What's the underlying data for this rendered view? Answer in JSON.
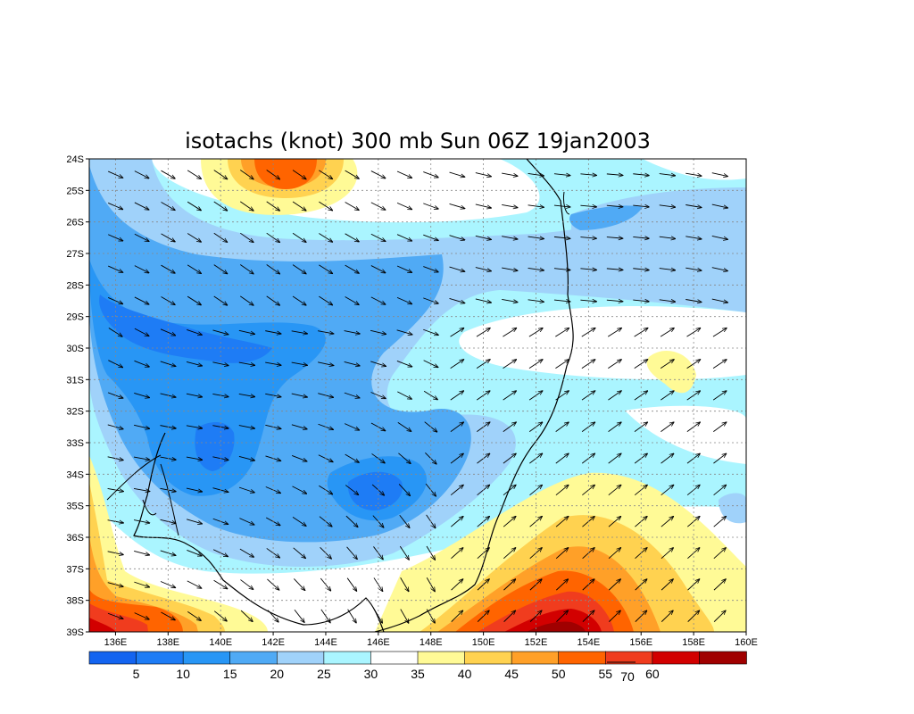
{
  "chart_data": {
    "type": "heatmap",
    "title": "isotachs (knot) 300 mb Sun 06Z 19jan2003",
    "x_ticks": [
      "136E",
      "138E",
      "140E",
      "142E",
      "144E",
      "146E",
      "148E",
      "150E",
      "152E",
      "154E",
      "156E",
      "158E",
      "160E"
    ],
    "y_ticks": [
      "24S",
      "25S",
      "26S",
      "27S",
      "28S",
      "29S",
      "30S",
      "31S",
      "32S",
      "33S",
      "34S",
      "35S",
      "36S",
      "37S",
      "38S",
      "39S"
    ],
    "xlim": [
      135,
      160
    ],
    "ylim": [
      -39,
      -24
    ],
    "grid": true,
    "colorbar": {
      "levels": [
        5,
        10,
        15,
        20,
        25,
        30,
        35,
        40,
        45,
        50,
        55,
        60
      ],
      "labels": [
        "5",
        "10",
        "15",
        "20",
        "25",
        "30",
        "35",
        "40",
        "45",
        "50",
        "55",
        "60"
      ],
      "colors": [
        "#1464f0",
        "#1e7cf5",
        "#2896f5",
        "#50aaf5",
        "#a0d2fa",
        "#aaf5ff",
        "#ffffff",
        "#fffa96",
        "#ffd250",
        "#ffa028",
        "#ff6400",
        "#f03c1e",
        "#d20000",
        "#a00000"
      ],
      "vector_ref": "70"
    },
    "wind_samples": [
      {
        "lat": -24.5,
        "lon": 141.5,
        "speed": 55
      },
      {
        "lat": -25,
        "lon": 142,
        "speed": 52
      },
      {
        "lat": -29.5,
        "lon": 137.5,
        "speed": 8
      },
      {
        "lat": -30,
        "lon": 140,
        "speed": 6
      },
      {
        "lat": -33,
        "lon": 139.5,
        "speed": 6
      },
      {
        "lat": -34.5,
        "lon": 145,
        "speed": 8
      },
      {
        "lat": -26,
        "lon": 154.5,
        "speed": 20
      },
      {
        "lat": -30.5,
        "lon": 156.5,
        "speed": 38
      },
      {
        "lat": -38.5,
        "lon": 153,
        "speed": 62
      },
      {
        "lat": -37.5,
        "lon": 152,
        "speed": 55
      },
      {
        "lat": -36.5,
        "lon": 154,
        "speed": 48
      },
      {
        "lat": -38.5,
        "lon": 136,
        "speed": 52
      }
    ]
  }
}
